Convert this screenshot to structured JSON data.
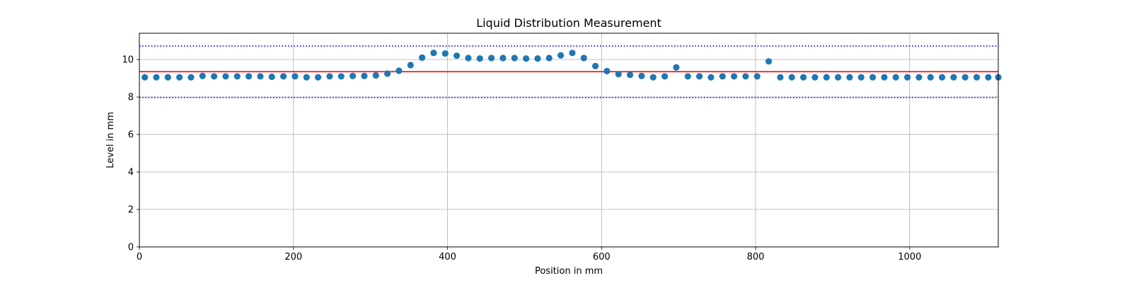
{
  "chart_data": {
    "type": "scatter",
    "title": "Liquid Distribution Measurement",
    "xlabel": "Position in mm",
    "ylabel": "Level in mm",
    "xlim": [
      0,
      1115
    ],
    "ylim": [
      0,
      11.4
    ],
    "xticks": [
      0,
      200,
      400,
      600,
      800,
      1000
    ],
    "yticks": [
      0,
      2,
      4,
      6,
      8,
      10
    ],
    "grid": true,
    "point_color": "#1f77b4",
    "reference_lines": [
      {
        "kind": "mean",
        "y": 9.35,
        "color": "#ff0000",
        "style": "solid"
      },
      {
        "kind": "upper-bound",
        "y": 10.72,
        "color": "#0000ff",
        "style": "dotted"
      },
      {
        "kind": "lower-bound",
        "y": 7.97,
        "color": "#0000ff",
        "style": "dotted"
      }
    ],
    "points": [
      {
        "x": 7,
        "y": 9.05
      },
      {
        "x": 22,
        "y": 9.05
      },
      {
        "x": 37,
        "y": 9.05
      },
      {
        "x": 52,
        "y": 9.05
      },
      {
        "x": 67,
        "y": 9.05
      },
      {
        "x": 82,
        "y": 9.12
      },
      {
        "x": 97,
        "y": 9.1
      },
      {
        "x": 112,
        "y": 9.1
      },
      {
        "x": 127,
        "y": 9.1
      },
      {
        "x": 142,
        "y": 9.1
      },
      {
        "x": 157,
        "y": 9.1
      },
      {
        "x": 172,
        "y": 9.08
      },
      {
        "x": 187,
        "y": 9.1
      },
      {
        "x": 202,
        "y": 9.1
      },
      {
        "x": 217,
        "y": 9.05
      },
      {
        "x": 232,
        "y": 9.05
      },
      {
        "x": 247,
        "y": 9.1
      },
      {
        "x": 262,
        "y": 9.1
      },
      {
        "x": 277,
        "y": 9.12
      },
      {
        "x": 292,
        "y": 9.12
      },
      {
        "x": 307,
        "y": 9.15
      },
      {
        "x": 322,
        "y": 9.25
      },
      {
        "x": 337,
        "y": 9.4
      },
      {
        "x": 352,
        "y": 9.7
      },
      {
        "x": 367,
        "y": 10.1
      },
      {
        "x": 382,
        "y": 10.35
      },
      {
        "x": 397,
        "y": 10.32
      },
      {
        "x": 412,
        "y": 10.2
      },
      {
        "x": 427,
        "y": 10.08
      },
      {
        "x": 442,
        "y": 10.05
      },
      {
        "x": 457,
        "y": 10.08
      },
      {
        "x": 472,
        "y": 10.08
      },
      {
        "x": 487,
        "y": 10.08
      },
      {
        "x": 502,
        "y": 10.05
      },
      {
        "x": 517,
        "y": 10.05
      },
      {
        "x": 532,
        "y": 10.08
      },
      {
        "x": 547,
        "y": 10.22
      },
      {
        "x": 562,
        "y": 10.35
      },
      {
        "x": 577,
        "y": 10.08
      },
      {
        "x": 592,
        "y": 9.65
      },
      {
        "x": 607,
        "y": 9.38
      },
      {
        "x": 622,
        "y": 9.22
      },
      {
        "x": 637,
        "y": 9.18
      },
      {
        "x": 652,
        "y": 9.12
      },
      {
        "x": 667,
        "y": 9.05
      },
      {
        "x": 682,
        "y": 9.1
      },
      {
        "x": 697,
        "y": 9.58
      },
      {
        "x": 712,
        "y": 9.1
      },
      {
        "x": 727,
        "y": 9.1
      },
      {
        "x": 742,
        "y": 9.05
      },
      {
        "x": 757,
        "y": 9.1
      },
      {
        "x": 772,
        "y": 9.1
      },
      {
        "x": 787,
        "y": 9.1
      },
      {
        "x": 802,
        "y": 9.1
      },
      {
        "x": 817,
        "y": 9.9
      },
      {
        "x": 832,
        "y": 9.05
      },
      {
        "x": 847,
        "y": 9.05
      },
      {
        "x": 862,
        "y": 9.05
      },
      {
        "x": 877,
        "y": 9.05
      },
      {
        "x": 892,
        "y": 9.05
      },
      {
        "x": 907,
        "y": 9.05
      },
      {
        "x": 922,
        "y": 9.05
      },
      {
        "x": 937,
        "y": 9.05
      },
      {
        "x": 952,
        "y": 9.05
      },
      {
        "x": 967,
        "y": 9.05
      },
      {
        "x": 982,
        "y": 9.05
      },
      {
        "x": 997,
        "y": 9.05
      },
      {
        "x": 1012,
        "y": 9.05
      },
      {
        "x": 1027,
        "y": 9.05
      },
      {
        "x": 1042,
        "y": 9.05
      },
      {
        "x": 1057,
        "y": 9.05
      },
      {
        "x": 1072,
        "y": 9.05
      },
      {
        "x": 1087,
        "y": 9.05
      },
      {
        "x": 1102,
        "y": 9.05
      },
      {
        "x": 1115,
        "y": 9.05
      }
    ]
  }
}
